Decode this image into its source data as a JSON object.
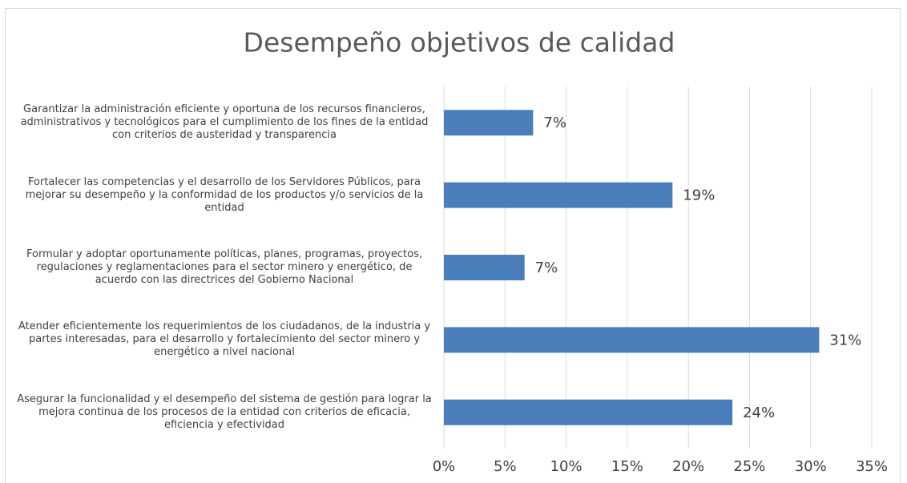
{
  "chart_data": {
    "type": "bar",
    "orientation": "horizontal",
    "title": "Desempeño objetivos de calidad",
    "categories": [
      "Garantizar la administración eficiente y oportuna de los recursos financieros, administrativos y tecnológicos para el cumplimiento de los fines de la entidad con criterios de austeridad y transparencia",
      "Fortalecer las competencias y el desarrollo de los Servidores Públicos, para mejorar su desempeño y la conformidad de los productos y/o servicios de la entidad",
      "Formular y adoptar oportunamente políticas, planes, programas, proyectos, regulaciones y reglamentaciones para el sector minero y energético, de acuerdo con las directrices del Gobierno Nacional",
      "Atender eficientemente los requerimientos de los ciudadanos, de la industria y partes interesadas, para el desarrollo y fortalecimiento del sector minero y energético a nivel nacional",
      "Asegurar la funcionalidad y el desempeño del sistema de gestión para lograr la mejora continua de los procesos de la entidad con criterios de eficacia, eficiencia y efectividad"
    ],
    "values": [
      7.3,
      18.7,
      6.6,
      30.7,
      23.6
    ],
    "value_labels": [
      "7%",
      "19%",
      "7%",
      "31%",
      "24%"
    ],
    "color": "#4a7ebb",
    "xlim": [
      0,
      35
    ],
    "xticks": [
      {
        "value": 0,
        "label": "0%"
      },
      {
        "value": 5,
        "label": "5%"
      },
      {
        "value": 10,
        "label": "10%"
      },
      {
        "value": 15,
        "label": "15%"
      },
      {
        "value": 20,
        "label": "20%"
      },
      {
        "value": 25,
        "label": "25%"
      },
      {
        "value": 30,
        "label": "30%"
      },
      {
        "value": 35,
        "label": "35%"
      }
    ],
    "grid": true
  }
}
